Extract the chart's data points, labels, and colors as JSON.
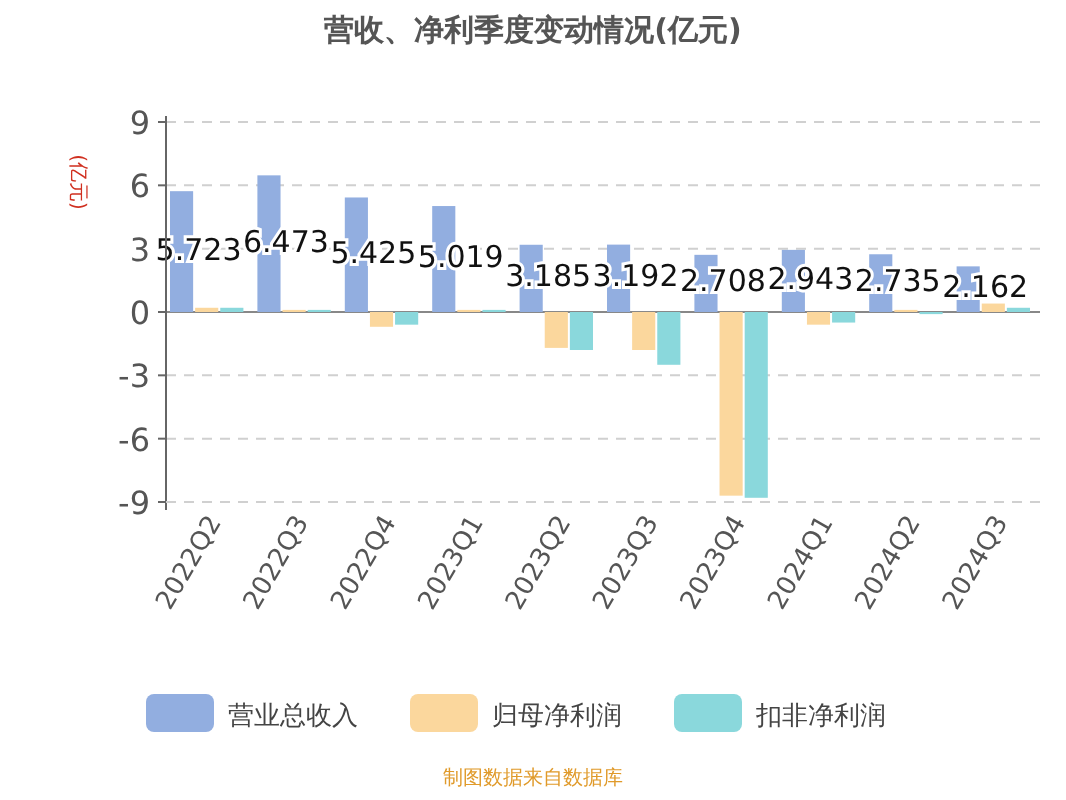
{
  "chart_data": {
    "type": "bar",
    "title": "营收、净利季度变动情况(亿元)",
    "ylabel": "(亿元)",
    "categories": [
      "2022Q2",
      "2022Q3",
      "2022Q4",
      "2023Q1",
      "2023Q2",
      "2023Q3",
      "2023Q4",
      "2024Q1",
      "2024Q2",
      "2024Q3"
    ],
    "series": [
      {
        "name": "营业总收入",
        "color": "#92aee0",
        "values": [
          5.723,
          6.473,
          5.425,
          5.019,
          3.185,
          3.192,
          2.708,
          2.943,
          2.735,
          2.162
        ],
        "value_labels": [
          "5.723",
          "6.473",
          "5.425",
          "5.019",
          "3.185",
          "3.192",
          "2.708",
          "2.943",
          "2.735",
          "2.162"
        ]
      },
      {
        "name": "归母净利润",
        "color": "#fbd79d",
        "values": [
          0.2,
          0.1,
          -0.7,
          0.1,
          -1.7,
          -1.8,
          -8.7,
          -0.6,
          0.1,
          0.4
        ]
      },
      {
        "name": "扣非净利润",
        "color": "#8ad8dc",
        "values": [
          0.2,
          0.1,
          -0.6,
          0.1,
          -1.8,
          -2.5,
          -8.8,
          -0.5,
          -0.1,
          0.2
        ]
      }
    ],
    "ylim": [
      -9,
      9
    ],
    "yticks": [
      -9,
      -6,
      -3,
      0,
      3,
      6,
      9
    ],
    "grid": "y",
    "legend": "bottom",
    "annotations": [
      "制图数据来自数据库"
    ]
  }
}
